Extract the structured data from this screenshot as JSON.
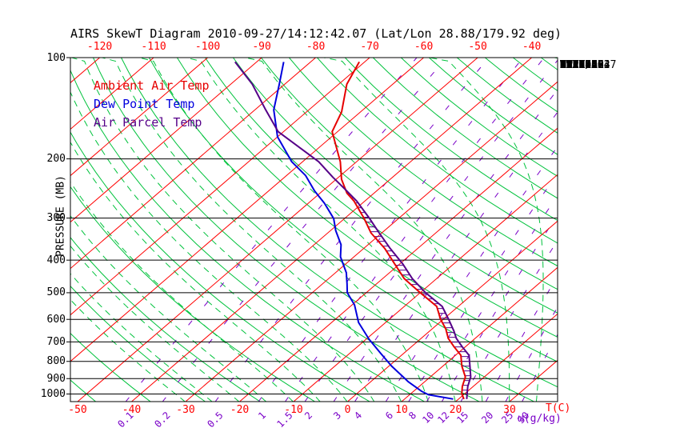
{
  "title": "AIRS SkewT Diagram 2010-09-27/14:12:42.07 (Lat/Lon 28.88/179.92 deg)",
  "colors": {
    "background": "#ffffff",
    "frame": "#000000",
    "isotherm": "#ff0000",
    "adiabat": "#00c23c",
    "mixing": "#7a00c8",
    "ambient": "#e60000",
    "dewpoint": "#0000dd",
    "parcel": "#550088",
    "hatch": "#550088",
    "tick_red": "#ff0000",
    "text": "#000000"
  },
  "legend": [
    {
      "label": "Ambient Air Temp",
      "color": "#e60000"
    },
    {
      "label": "Dew Point Temp",
      "color": "#0000dd"
    },
    {
      "label": "Air Parcel Temp",
      "color": "#550088"
    }
  ],
  "axes": {
    "pressure_label": "PRESSURE (MB)",
    "pressure_ticks": [
      100,
      200,
      300,
      400,
      500,
      600,
      700,
      800,
      900,
      1000
    ],
    "top_temp_ticks": [
      -120,
      -110,
      -100,
      -90,
      -80,
      -70,
      -60,
      -50,
      -40
    ],
    "bottom_temp_ticks": [
      -50,
      -40,
      -30,
      -20,
      -10,
      0,
      10,
      20,
      30
    ],
    "mixing_ratio_ticks": [
      0.1,
      0.2,
      0.5,
      1,
      1.5,
      2,
      3,
      4,
      6,
      8,
      10,
      12,
      15,
      20,
      25,
      30
    ],
    "temp_unit_label": "T(C)",
    "mixing_unit_label": "ω(g/kg)"
  },
  "panel": [
    "TP:100",
    "MW:N/A",
    "FRZ:580",
    "WB0:674",
    "PW:29.33",
    "RH:51.3",
    "MAXT:29.7",
    "TH:5463",
    "L57:6.7",
    "LCL:1004",
    "LI:-1.0",
    "SI:6.2",
    "TT:37.6",
    "KI:288",
    "SW:N/A",
    "EI:0.2",
    "-PARCEL-",
    "CAPE:462",
    "CINH:1",
    "LCL:1004",
    "CAP:0.0",
    "LFC:980",
    "EL:245",
    "MPL:168",
    "-WIND-",
    "NOT",
    "AVAIL"
  ],
  "chart_data": {
    "type": "line",
    "subtype": "skewt-log-p",
    "pressure_range_mb": [
      100,
      1055
    ],
    "bottom_temp_range_c": [
      -50,
      30
    ],
    "top_temp_range_c": [
      -120,
      -40
    ],
    "grid": {
      "isotherms_c": {
        "min": -130,
        "max": 40,
        "step": 10
      },
      "dry_adiabats_theta_c": {
        "min": -60,
        "max": 190,
        "step": 10
      },
      "moist_adiabats_start_c": {
        "min": -30,
        "max": 45,
        "step": 5
      },
      "mixing_ratio_g_kg": [
        0.1,
        0.2,
        0.5,
        1,
        1.5,
        2,
        3,
        4,
        6,
        8,
        10,
        12,
        15,
        20,
        25,
        30
      ]
    },
    "cape_hatch_pressure_range": [
      245,
      990
    ],
    "series": [
      {
        "name": "Ambient Air Temp",
        "color": "#e60000",
        "points_p_t": [
          [
            103,
            -71
          ],
          [
            120,
            -68.5
          ],
          [
            145,
            -63.5
          ],
          [
            166,
            -61
          ],
          [
            204,
            -53
          ],
          [
            230,
            -49
          ],
          [
            253,
            -45
          ],
          [
            267,
            -42
          ],
          [
            300,
            -36.5
          ],
          [
            332,
            -32
          ],
          [
            370,
            -26
          ],
          [
            410,
            -21
          ],
          [
            454,
            -16
          ],
          [
            500,
            -10
          ],
          [
            549,
            -4
          ],
          [
            600,
            -0.5
          ],
          [
            640,
            2.5
          ],
          [
            683,
            5
          ],
          [
            725,
            8
          ],
          [
            767,
            11
          ],
          [
            826,
            13.5
          ],
          [
            890,
            16.5
          ],
          [
            950,
            18
          ],
          [
            1000,
            19.5
          ],
          [
            1035,
            21
          ]
        ]
      },
      {
        "name": "Dew Point Temp",
        "color": "#0000dd",
        "points_p_t": [
          [
            103,
            -85
          ],
          [
            120,
            -81
          ],
          [
            143,
            -76.5
          ],
          [
            172,
            -70
          ],
          [
            204,
            -62
          ],
          [
            224,
            -56.5
          ],
          [
            249,
            -51.5
          ],
          [
            271,
            -47
          ],
          [
            301,
            -42
          ],
          [
            327,
            -39
          ],
          [
            360,
            -35
          ],
          [
            391,
            -32.5
          ],
          [
            436,
            -28
          ],
          [
            470,
            -25.5
          ],
          [
            500,
            -23.5
          ],
          [
            544,
            -19.5
          ],
          [
            613,
            -15
          ],
          [
            687,
            -9.5
          ],
          [
            755,
            -4.4
          ],
          [
            826,
            0.5
          ],
          [
            920,
            7
          ],
          [
            983,
            11.6
          ],
          [
            1005,
            13.5
          ],
          [
            1035,
            19
          ]
        ]
      },
      {
        "name": "Air Parcel Temp",
        "color": "#550088",
        "points_p_t": [
          [
            103,
            -94
          ],
          [
            120,
            -86
          ],
          [
            143,
            -78
          ],
          [
            166,
            -71
          ],
          [
            204,
            -57
          ],
          [
            227,
            -51
          ],
          [
            245,
            -46.5
          ],
          [
            267,
            -41.5
          ],
          [
            300,
            -35.5
          ],
          [
            332,
            -30.5
          ],
          [
            370,
            -25
          ],
          [
            410,
            -19.5
          ],
          [
            454,
            -14.5
          ],
          [
            500,
            -9
          ],
          [
            549,
            -3
          ],
          [
            600,
            1
          ],
          [
            650,
            4.5
          ],
          [
            683,
            6.5
          ],
          [
            725,
            9.5
          ],
          [
            767,
            12.5
          ],
          [
            826,
            15
          ],
          [
            890,
            17.5
          ],
          [
            950,
            19
          ],
          [
            1000,
            20.5
          ],
          [
            1035,
            21.5
          ]
        ]
      }
    ]
  }
}
